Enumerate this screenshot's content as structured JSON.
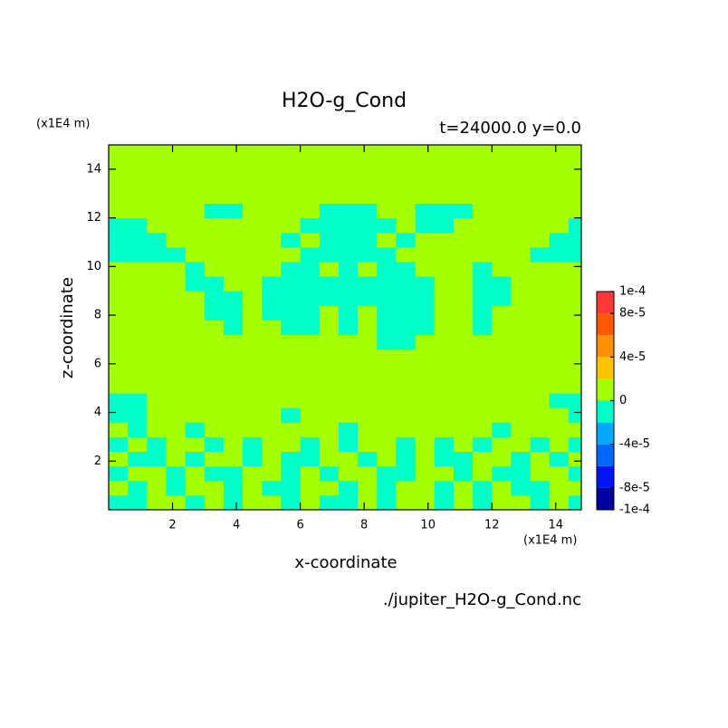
{
  "chart_data": {
    "type": "contour",
    "title": "H2O-g_Cond",
    "subtitle": "t=24000.0 y=0.0",
    "x_label": "x-coordinate",
    "y_label": "z-coordinate",
    "x_unit": "(x1E4 m)",
    "y_unit": "(x1E4 m)",
    "source": "./jupiter_H2O-g_Cond.nc",
    "xlim": [
      0,
      14.8
    ],
    "ylim": [
      0,
      15
    ],
    "xticks": [
      2,
      4,
      6,
      8,
      10,
      12,
      14
    ],
    "yticks": [
      2,
      4,
      6,
      8,
      10,
      12,
      14
    ],
    "x": [
      0.3,
      0.9,
      1.5,
      2.1,
      2.7,
      3.3,
      3.9,
      4.5,
      5.1,
      5.7,
      6.3,
      6.9,
      7.5,
      8.1,
      8.7,
      9.3,
      9.9,
      10.5,
      11.1,
      11.7,
      12.3,
      12.9,
      13.5,
      14.1,
      14.7
    ],
    "y": [
      0.3,
      0.9,
      1.5,
      2.1,
      2.7,
      3.3,
      3.9,
      4.5,
      5.1,
      5.7,
      6.3,
      6.9,
      7.5,
      8.1,
      8.7,
      9.3,
      9.9,
      10.5,
      11.1,
      11.7,
      12.3,
      12.9,
      13.5,
      14.1,
      14.7
    ],
    "z": [
      [
        -1e-05,
        -1e-05,
        1e-05,
        1e-05,
        -1e-05,
        1e-05,
        -1e-05,
        1e-05,
        1e-05,
        -1e-05,
        1e-05,
        -1e-05,
        -1e-05,
        1e-05,
        -1e-05,
        1e-05,
        1e-05,
        -1e-05,
        1e-05,
        -1e-05,
        1e-05,
        1e-05,
        -1e-05,
        1e-05,
        -1e-05
      ],
      [
        1e-05,
        -1e-05,
        1e-05,
        -1e-05,
        1e-05,
        1e-05,
        -1e-05,
        1e-05,
        -1e-05,
        -1e-05,
        1e-05,
        1e-05,
        -1e-05,
        1e-05,
        -1e-05,
        1e-05,
        1e-05,
        -1e-05,
        1e-05,
        -1e-05,
        1e-05,
        -1e-05,
        -1e-05,
        1e-05,
        1e-05
      ],
      [
        -1e-05,
        1e-05,
        1e-05,
        -1e-05,
        1e-05,
        -1e-05,
        -1e-05,
        1e-05,
        1e-05,
        -1e-05,
        1e-05,
        -1e-05,
        1e-05,
        1e-05,
        -1e-05,
        -1e-05,
        1e-05,
        1e-05,
        -1e-05,
        1e-05,
        -1e-05,
        -1e-05,
        1e-05,
        1e-05,
        -1e-05
      ],
      [
        1e-05,
        -1e-05,
        -1e-05,
        1e-05,
        -1e-05,
        1e-05,
        1e-05,
        -1e-05,
        1e-05,
        -1e-05,
        -1e-05,
        1e-05,
        1e-05,
        -1e-05,
        1e-05,
        -1e-05,
        1e-05,
        -1e-05,
        -1e-05,
        1e-05,
        1e-05,
        -1e-05,
        1e-05,
        -1e-05,
        1e-05
      ],
      [
        -1e-05,
        1e-05,
        -1e-05,
        1e-05,
        1e-05,
        -1e-05,
        1e-05,
        -1e-05,
        1e-05,
        1e-05,
        -1e-05,
        1e-05,
        -1e-05,
        1e-05,
        1e-05,
        -1e-05,
        1e-05,
        -1e-05,
        1e-05,
        -1e-05,
        1e-05,
        1e-05,
        -1e-05,
        1e-05,
        -1e-05
      ],
      [
        1e-05,
        -1e-05,
        1e-05,
        1e-05,
        -1e-05,
        1e-05,
        1e-05,
        1e-05,
        1e-05,
        1e-05,
        1e-05,
        1e-05,
        -1e-05,
        1e-05,
        1e-05,
        1e-05,
        1e-05,
        1e-05,
        1e-05,
        1e-05,
        -1e-05,
        1e-05,
        1e-05,
        1e-05,
        1e-05
      ],
      [
        -1e-05,
        -1e-05,
        1e-05,
        1e-05,
        1e-05,
        1e-05,
        1e-05,
        1e-05,
        1e-05,
        -1e-05,
        1e-05,
        1e-05,
        1e-05,
        1e-05,
        1e-05,
        1e-05,
        1e-05,
        1e-05,
        1e-05,
        1e-05,
        1e-05,
        1e-05,
        1e-05,
        1e-05,
        -1e-05
      ],
      [
        -1e-05,
        -1e-05,
        1e-05,
        1e-05,
        1e-05,
        1e-05,
        1e-05,
        1e-05,
        1e-05,
        1e-05,
        1e-05,
        1e-05,
        1e-05,
        1e-05,
        1e-05,
        1e-05,
        1e-05,
        1e-05,
        1e-05,
        1e-05,
        1e-05,
        1e-05,
        1e-05,
        -1e-05,
        -1e-05
      ],
      [
        1e-05,
        1e-05,
        1e-05,
        1e-05,
        1e-05,
        1e-05,
        1e-05,
        1e-05,
        1e-05,
        1e-05,
        1e-05,
        1e-05,
        1e-05,
        1e-05,
        1e-05,
        1e-05,
        1e-05,
        1e-05,
        1e-05,
        1e-05,
        1e-05,
        1e-05,
        1e-05,
        1e-05,
        1e-05
      ],
      [
        1e-05,
        1e-05,
        1e-05,
        1e-05,
        1e-05,
        1e-05,
        1e-05,
        1e-05,
        1e-05,
        1e-05,
        1e-05,
        1e-05,
        1e-05,
        1e-05,
        1e-05,
        1e-05,
        1e-05,
        1e-05,
        1e-05,
        1e-05,
        1e-05,
        1e-05,
        1e-05,
        1e-05,
        1e-05
      ],
      [
        1e-05,
        1e-05,
        1e-05,
        1e-05,
        1e-05,
        1e-05,
        1e-05,
        1e-05,
        1e-05,
        1e-05,
        1e-05,
        1e-05,
        1e-05,
        1e-05,
        1e-05,
        1e-05,
        1e-05,
        1e-05,
        1e-05,
        1e-05,
        1e-05,
        1e-05,
        1e-05,
        1e-05,
        1e-05
      ],
      [
        1e-05,
        1e-05,
        1e-05,
        1e-05,
        1e-05,
        1e-05,
        1e-05,
        1e-05,
        1e-05,
        1e-05,
        1e-05,
        1e-05,
        1e-05,
        1e-05,
        -1e-05,
        -1e-05,
        1e-05,
        1e-05,
        1e-05,
        1e-05,
        1e-05,
        1e-05,
        1e-05,
        1e-05,
        1e-05
      ],
      [
        1e-05,
        1e-05,
        1e-05,
        1e-05,
        1e-05,
        1e-05,
        -1e-05,
        1e-05,
        1e-05,
        -1e-05,
        -1e-05,
        1e-05,
        -1e-05,
        1e-05,
        -1e-05,
        -1e-05,
        -1e-05,
        1e-05,
        1e-05,
        -1e-05,
        1e-05,
        1e-05,
        1e-05,
        1e-05,
        1e-05
      ],
      [
        1e-05,
        1e-05,
        1e-05,
        1e-05,
        1e-05,
        -1e-05,
        -1e-05,
        1e-05,
        -1e-05,
        -1e-05,
        -1e-05,
        1e-05,
        -1e-05,
        1e-05,
        -1e-05,
        -1e-05,
        -1e-05,
        1e-05,
        1e-05,
        -1e-05,
        1e-05,
        1e-05,
        1e-05,
        1e-05,
        1e-05
      ],
      [
        1e-05,
        1e-05,
        1e-05,
        1e-05,
        1e-05,
        -1e-05,
        -1e-05,
        1e-05,
        -1e-05,
        -1e-05,
        -1e-05,
        -1e-05,
        -1e-05,
        -1e-05,
        -1e-05,
        -1e-05,
        -1e-05,
        1e-05,
        1e-05,
        -1e-05,
        -1e-05,
        1e-05,
        1e-05,
        1e-05,
        1e-05
      ],
      [
        1e-05,
        1e-05,
        1e-05,
        1e-05,
        -1e-05,
        -1e-05,
        1e-05,
        1e-05,
        -1e-05,
        -1e-05,
        -1e-05,
        -1e-05,
        -1e-05,
        -1e-05,
        -1e-05,
        -1e-05,
        -1e-05,
        1e-05,
        1e-05,
        -1e-05,
        -1e-05,
        1e-05,
        1e-05,
        1e-05,
        1e-05
      ],
      [
        1e-05,
        1e-05,
        1e-05,
        1e-05,
        -1e-05,
        1e-05,
        1e-05,
        1e-05,
        1e-05,
        -1e-05,
        -1e-05,
        1e-05,
        -1e-05,
        1e-05,
        -1e-05,
        -1e-05,
        1e-05,
        1e-05,
        1e-05,
        -1e-05,
        1e-05,
        1e-05,
        1e-05,
        1e-05,
        1e-05
      ],
      [
        -1e-05,
        -1e-05,
        -1e-05,
        -1e-05,
        1e-05,
        1e-05,
        1e-05,
        1e-05,
        1e-05,
        1e-05,
        -1e-05,
        -1e-05,
        -1e-05,
        -1e-05,
        -1e-05,
        1e-05,
        1e-05,
        1e-05,
        1e-05,
        1e-05,
        1e-05,
        1e-05,
        -1e-05,
        -1e-05,
        -1e-05
      ],
      [
        -1e-05,
        -1e-05,
        -1e-05,
        1e-05,
        1e-05,
        1e-05,
        1e-05,
        1e-05,
        1e-05,
        -1e-05,
        1e-05,
        -1e-05,
        -1e-05,
        -1e-05,
        1e-05,
        -1e-05,
        1e-05,
        1e-05,
        1e-05,
        1e-05,
        1e-05,
        1e-05,
        1e-05,
        -1e-05,
        -1e-05
      ],
      [
        -1e-05,
        -1e-05,
        1e-05,
        1e-05,
        1e-05,
        1e-05,
        1e-05,
        1e-05,
        1e-05,
        1e-05,
        -1e-05,
        -1e-05,
        -1e-05,
        -1e-05,
        -1e-05,
        1e-05,
        -1e-05,
        -1e-05,
        1e-05,
        1e-05,
        1e-05,
        1e-05,
        1e-05,
        1e-05,
        -1e-05
      ],
      [
        1e-05,
        1e-05,
        1e-05,
        1e-05,
        1e-05,
        -1e-05,
        -1e-05,
        1e-05,
        1e-05,
        1e-05,
        1e-05,
        -1e-05,
        -1e-05,
        -1e-05,
        1e-05,
        1e-05,
        -1e-05,
        -1e-05,
        -1e-05,
        1e-05,
        1e-05,
        1e-05,
        1e-05,
        1e-05,
        1e-05
      ],
      [
        1e-05,
        1e-05,
        1e-05,
        1e-05,
        1e-05,
        1e-05,
        1e-05,
        1e-05,
        1e-05,
        1e-05,
        1e-05,
        1e-05,
        1e-05,
        1e-05,
        1e-05,
        1e-05,
        1e-05,
        1e-05,
        1e-05,
        1e-05,
        1e-05,
        1e-05,
        1e-05,
        1e-05,
        1e-05
      ],
      [
        1e-05,
        1e-05,
        1e-05,
        1e-05,
        1e-05,
        1e-05,
        1e-05,
        1e-05,
        1e-05,
        1e-05,
        1e-05,
        1e-05,
        1e-05,
        1e-05,
        1e-05,
        1e-05,
        1e-05,
        1e-05,
        1e-05,
        1e-05,
        1e-05,
        1e-05,
        1e-05,
        1e-05,
        1e-05
      ],
      [
        1e-05,
        1e-05,
        1e-05,
        1e-05,
        1e-05,
        1e-05,
        1e-05,
        1e-05,
        1e-05,
        1e-05,
        1e-05,
        1e-05,
        1e-05,
        1e-05,
        1e-05,
        1e-05,
        1e-05,
        1e-05,
        1e-05,
        1e-05,
        1e-05,
        1e-05,
        1e-05,
        1e-05,
        1e-05
      ],
      [
        1e-05,
        1e-05,
        1e-05,
        1e-05,
        1e-05,
        1e-05,
        1e-05,
        1e-05,
        1e-05,
        1e-05,
        1e-05,
        1e-05,
        1e-05,
        1e-05,
        1e-05,
        1e-05,
        1e-05,
        1e-05,
        1e-05,
        1e-05,
        1e-05,
        1e-05,
        1e-05,
        1e-05,
        1e-05
      ]
    ],
    "colorbar": {
      "levels": [
        -0.0001,
        -8e-05,
        -6e-05,
        -4e-05,
        -2e-05,
        0,
        2e-05,
        4e-05,
        6e-05,
        8e-05,
        0.0001
      ],
      "colors": [
        "#0000a0",
        "#0014f5",
        "#0068ff",
        "#00a8ff",
        "#00ffc8",
        "#a6ff00",
        "#ffc400",
        "#ff9000",
        "#ff5a00",
        "#ff3838"
      ],
      "ticks": [
        {
          "value": 0.0001,
          "label": "1e-4"
        },
        {
          "value": 8e-05,
          "label": "8e-5"
        },
        {
          "value": 4e-05,
          "label": "4e-5"
        },
        0,
        {
          "value": -4e-05,
          "label": "-4e-5"
        },
        {
          "value": -8e-05,
          "label": "-8e-5"
        },
        {
          "value": -0.0001,
          "label": "-1e-4"
        }
      ]
    }
  }
}
